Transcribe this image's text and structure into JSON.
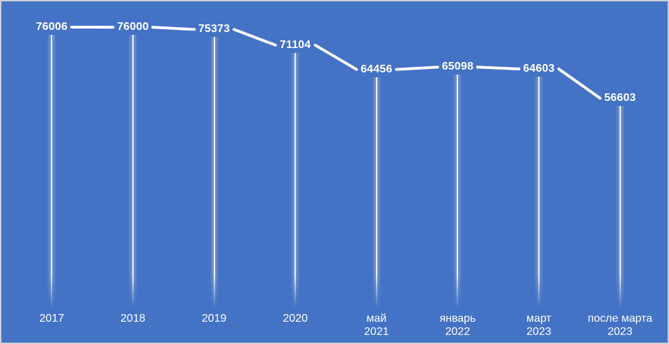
{
  "chart_data": {
    "type": "line",
    "title": "",
    "categories": [
      "2017",
      "2018",
      "2019",
      "2020",
      "май 2021",
      "январь 2022",
      "март 2023",
      "после марта 2023"
    ],
    "category_lines": [
      [
        "2017"
      ],
      [
        "2018"
      ],
      [
        "2019"
      ],
      [
        "2020"
      ],
      [
        "май",
        "2021"
      ],
      [
        "январь",
        "2022"
      ],
      [
        "март",
        "2023"
      ],
      [
        "после марта",
        "2023"
      ]
    ],
    "values": [
      76006,
      76000,
      75373,
      71104,
      64456,
      65098,
      64603,
      56603
    ],
    "labels": [
      "76006",
      "76000",
      "75373",
      "71104",
      "64456",
      "65098",
      "64603",
      "56603"
    ],
    "xlabel": "",
    "ylabel": "",
    "ylim": [
      0,
      80000
    ],
    "grid": false,
    "legend": false,
    "data_labels": true,
    "drop_lines": true
  },
  "colors": {
    "background": "#4472C4",
    "border": "#CDD1D6",
    "line": "#FFFFFF",
    "label_text": "#FFFFFF",
    "axis_text": "#FFFFFF",
    "bar_glow": "rgba(255,255,255,0.30)",
    "bar_core": "rgba(255,255,255,0.85)"
  }
}
